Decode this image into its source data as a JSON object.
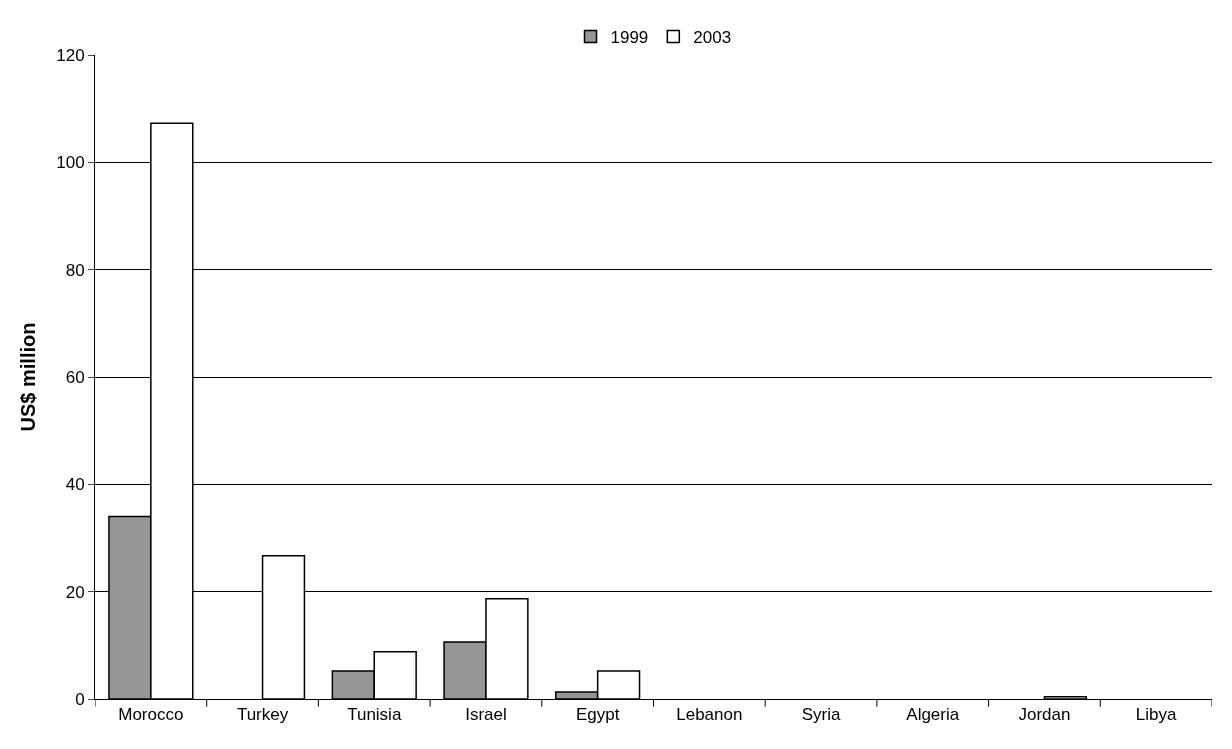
{
  "chart_data": {
    "type": "bar",
    "ylabel": "US$ million",
    "categories": [
      "Morocco",
      "Turkey",
      "Tunisia",
      "Israel",
      "Egypt",
      "Lebanon",
      "Syria",
      "Algeria",
      "Jordan",
      "Libya"
    ],
    "series": [
      {
        "name": "1999",
        "color": "#969696",
        "values": [
          34,
          null,
          5.2,
          10.6,
          1.3,
          null,
          null,
          null,
          null,
          null
        ]
      },
      {
        "name": "2003",
        "color": "#ffffff",
        "values": [
          107.3,
          26.7,
          8.8,
          18.7,
          5.2,
          null,
          null,
          null,
          0.4,
          null
        ]
      }
    ],
    "ylim": [
      0,
      120
    ],
    "yticks": [
      0,
      20,
      40,
      60,
      80,
      100,
      120
    ],
    "grid": "y",
    "legend": "top"
  }
}
